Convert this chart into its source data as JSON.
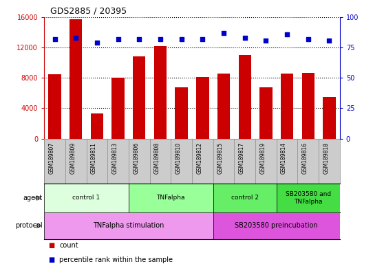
{
  "title": "GDS2885 / 20395",
  "samples": [
    "GSM189807",
    "GSM189809",
    "GSM189811",
    "GSM189813",
    "GSM189806",
    "GSM189808",
    "GSM189810",
    "GSM189812",
    "GSM189815",
    "GSM189817",
    "GSM189819",
    "GSM189814",
    "GSM189816",
    "GSM189818"
  ],
  "counts": [
    8500,
    15700,
    3300,
    8000,
    10800,
    12200,
    6800,
    8100,
    8600,
    11000,
    6800,
    8600,
    8700,
    5500
  ],
  "percentile": [
    82,
    83,
    79,
    82,
    82,
    82,
    82,
    82,
    87,
    83,
    81,
    86,
    82,
    81
  ],
  "ylim_left": [
    0,
    16000
  ],
  "ylim_right": [
    0,
    100
  ],
  "yticks_left": [
    0,
    4000,
    8000,
    12000,
    16000
  ],
  "yticks_right": [
    0,
    25,
    50,
    75,
    100
  ],
  "bar_color": "#cc0000",
  "dot_color": "#0000cc",
  "agent_groups": [
    {
      "label": "control 1",
      "start": 0,
      "end": 4,
      "color": "#ddffdd"
    },
    {
      "label": "TNFalpha",
      "start": 4,
      "end": 8,
      "color": "#99ff99"
    },
    {
      "label": "control 2",
      "start": 8,
      "end": 11,
      "color": "#66ee66"
    },
    {
      "label": "SB203580 and\nTNFalpha",
      "start": 11,
      "end": 14,
      "color": "#44dd44"
    }
  ],
  "protocol_groups": [
    {
      "label": "TNFalpha stimulation",
      "start": 0,
      "end": 8,
      "color": "#ee99ee"
    },
    {
      "label": "SB203580 preincubation",
      "start": 8,
      "end": 14,
      "color": "#dd55dd"
    }
  ],
  "legend_count_color": "#cc0000",
  "legend_pct_color": "#0000cc",
  "bg_color": "#ffffff",
  "grid_color": "#000000",
  "axis_left_color": "#cc0000",
  "axis_right_color": "#0000cc",
  "sample_bg_color": "#cccccc",
  "sample_border_color": "#888888"
}
